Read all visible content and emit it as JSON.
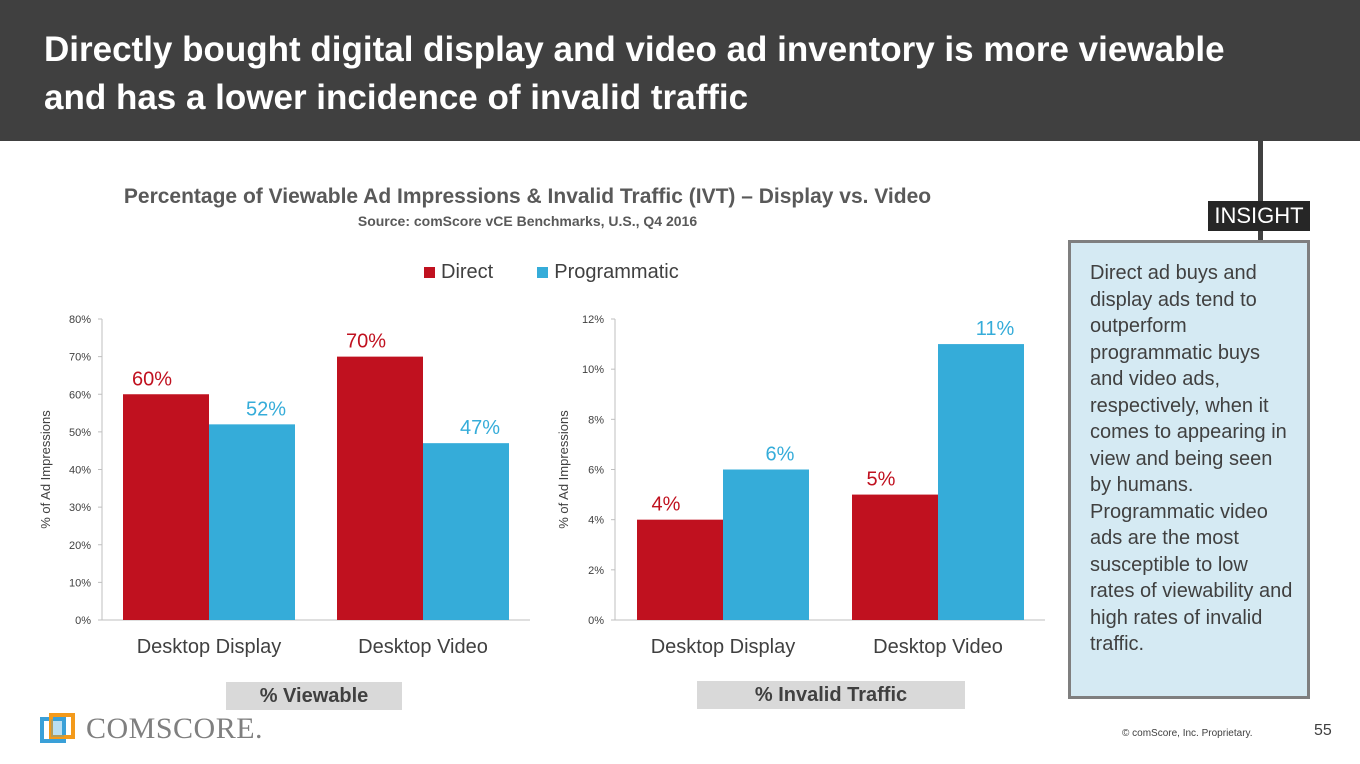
{
  "header": {
    "title": "Directly bought digital display and video ad inventory is more viewable and has a lower incidence of invalid traffic"
  },
  "chart_title": "Percentage of Viewable Ad Impressions & Invalid Traffic (IVT) – Display vs. Video",
  "chart_source": "Source: comScore vCE Benchmarks, U.S., Q4 2016",
  "legend": [
    {
      "name": "Direct",
      "color": "#c0111f"
    },
    {
      "name": "Programmatic",
      "color": "#35acd9"
    }
  ],
  "chart_data": [
    {
      "type": "bar",
      "caption": "% Viewable",
      "ylabel": "% of Ad Impressions",
      "ylim": [
        0,
        80
      ],
      "yticks": [
        "0%",
        "10%",
        "20%",
        "30%",
        "40%",
        "50%",
        "60%",
        "70%",
        "80%"
      ],
      "categories": [
        "Desktop Display",
        "Desktop Video"
      ],
      "series": [
        {
          "name": "Direct",
          "values": [
            60,
            70
          ],
          "labels": [
            "60%",
            "70%"
          ],
          "color": "#c0111f"
        },
        {
          "name": "Programmatic",
          "values": [
            52,
            47
          ],
          "labels": [
            "52%",
            "47%"
          ],
          "color": "#35acd9"
        }
      ]
    },
    {
      "type": "bar",
      "caption": "% Invalid Traffic",
      "ylabel": "% of Ad Impressions",
      "ylim": [
        0,
        12
      ],
      "yticks": [
        "0%",
        "2%",
        "4%",
        "6%",
        "8%",
        "10%",
        "12%"
      ],
      "categories": [
        "Desktop Display",
        "Desktop Video"
      ],
      "series": [
        {
          "name": "Direct",
          "values": [
            4,
            5
          ],
          "labels": [
            "4%",
            "5%"
          ],
          "color": "#c0111f"
        },
        {
          "name": "Programmatic",
          "values": [
            6,
            11
          ],
          "labels": [
            "6%",
            "11%"
          ],
          "color": "#35acd9"
        }
      ]
    }
  ],
  "insight": {
    "tab_label": "INSIGHT",
    "text": "Direct ad buys and display ads tend to outperform programmatic buys and video ads, respectively, when it comes to appearing in view and being seen by humans. Programmatic video ads are the most susceptible to low rates of viewability and high rates of invalid traffic."
  },
  "logo": {
    "text": "COMSCORE.",
    "icon": "comscore-logo-icon"
  },
  "footer": {
    "copyright": "© comScore, Inc. Proprietary.",
    "page_number": "55"
  }
}
